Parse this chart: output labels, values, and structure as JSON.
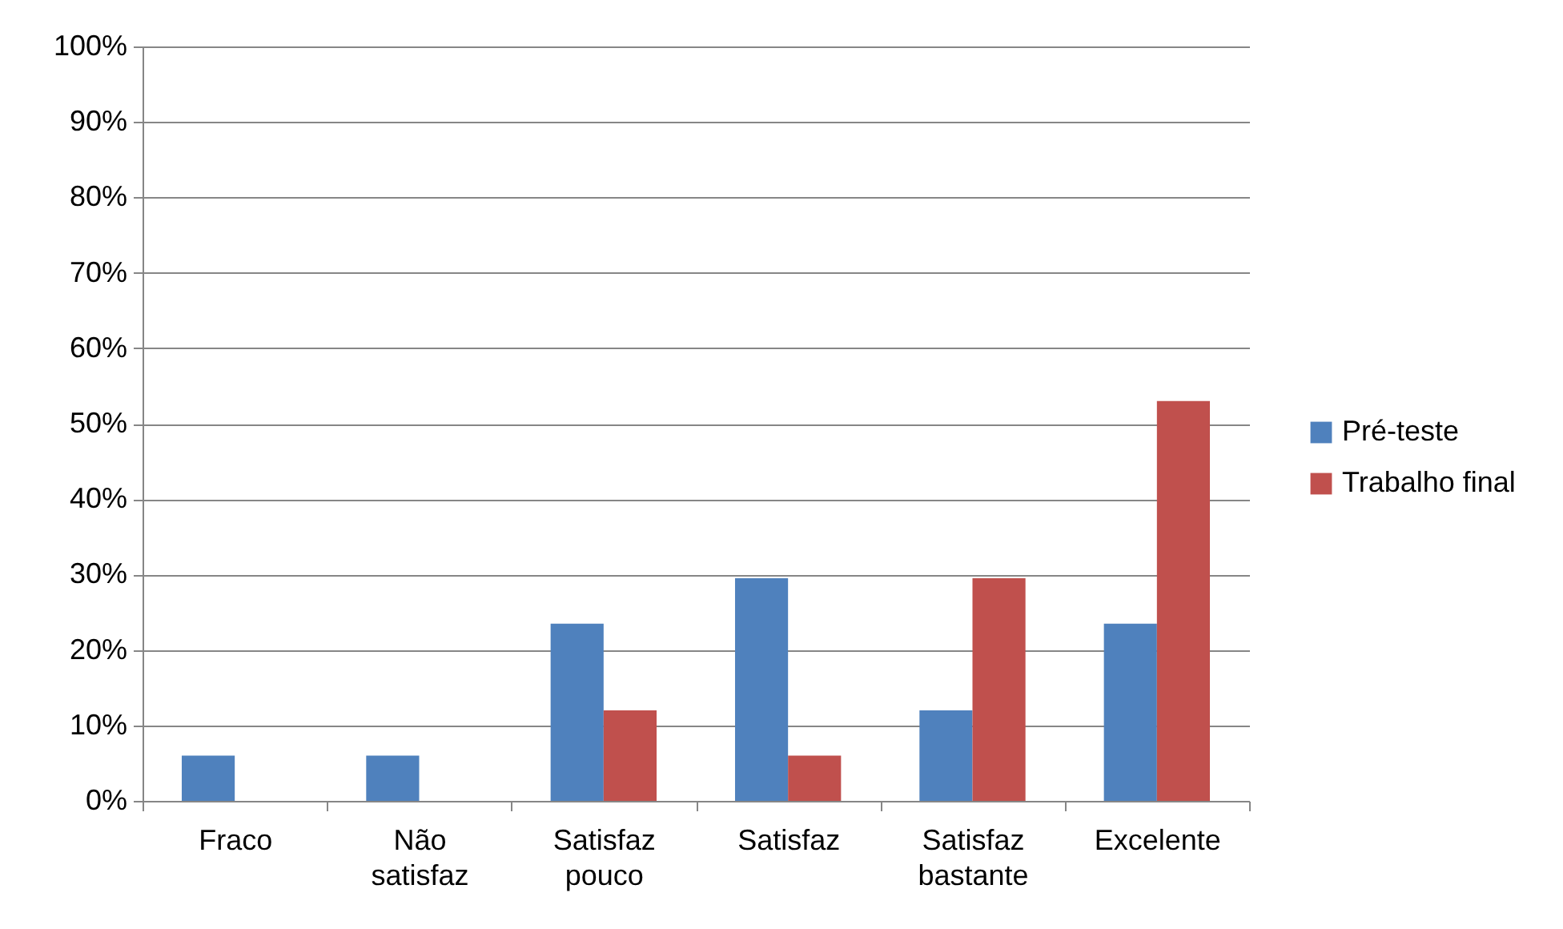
{
  "chart_data": {
    "type": "bar",
    "categories": [
      "Fraco",
      "Não satisfaz",
      "Satisfaz pouco",
      "Satisfaz",
      "Satisfaz bastante",
      "Excelente"
    ],
    "series": [
      {
        "name": "Pré-teste",
        "color": "#4f81bd",
        "values": [
          6,
          6,
          23.5,
          29.5,
          12,
          23.5
        ]
      },
      {
        "name": "Trabalho final",
        "color": "#c0504d",
        "values": [
          0,
          0,
          12,
          6,
          29.5,
          53
        ]
      }
    ],
    "ylim": [
      0,
      100
    ],
    "yticks": [
      {
        "value": 0,
        "label": "0%"
      },
      {
        "value": 10,
        "label": "10%"
      },
      {
        "value": 20,
        "label": "20%"
      },
      {
        "value": 30,
        "label": "30%"
      },
      {
        "value": 40,
        "label": "40%"
      },
      {
        "value": 50,
        "label": "50%"
      },
      {
        "value": 60,
        "label": "60%"
      },
      {
        "value": 70,
        "label": "70%"
      },
      {
        "value": 80,
        "label": "80%"
      },
      {
        "value": 90,
        "label": "90%"
      },
      {
        "value": 100,
        "label": "100%"
      }
    ],
    "grid": "y",
    "legend": "right"
  }
}
